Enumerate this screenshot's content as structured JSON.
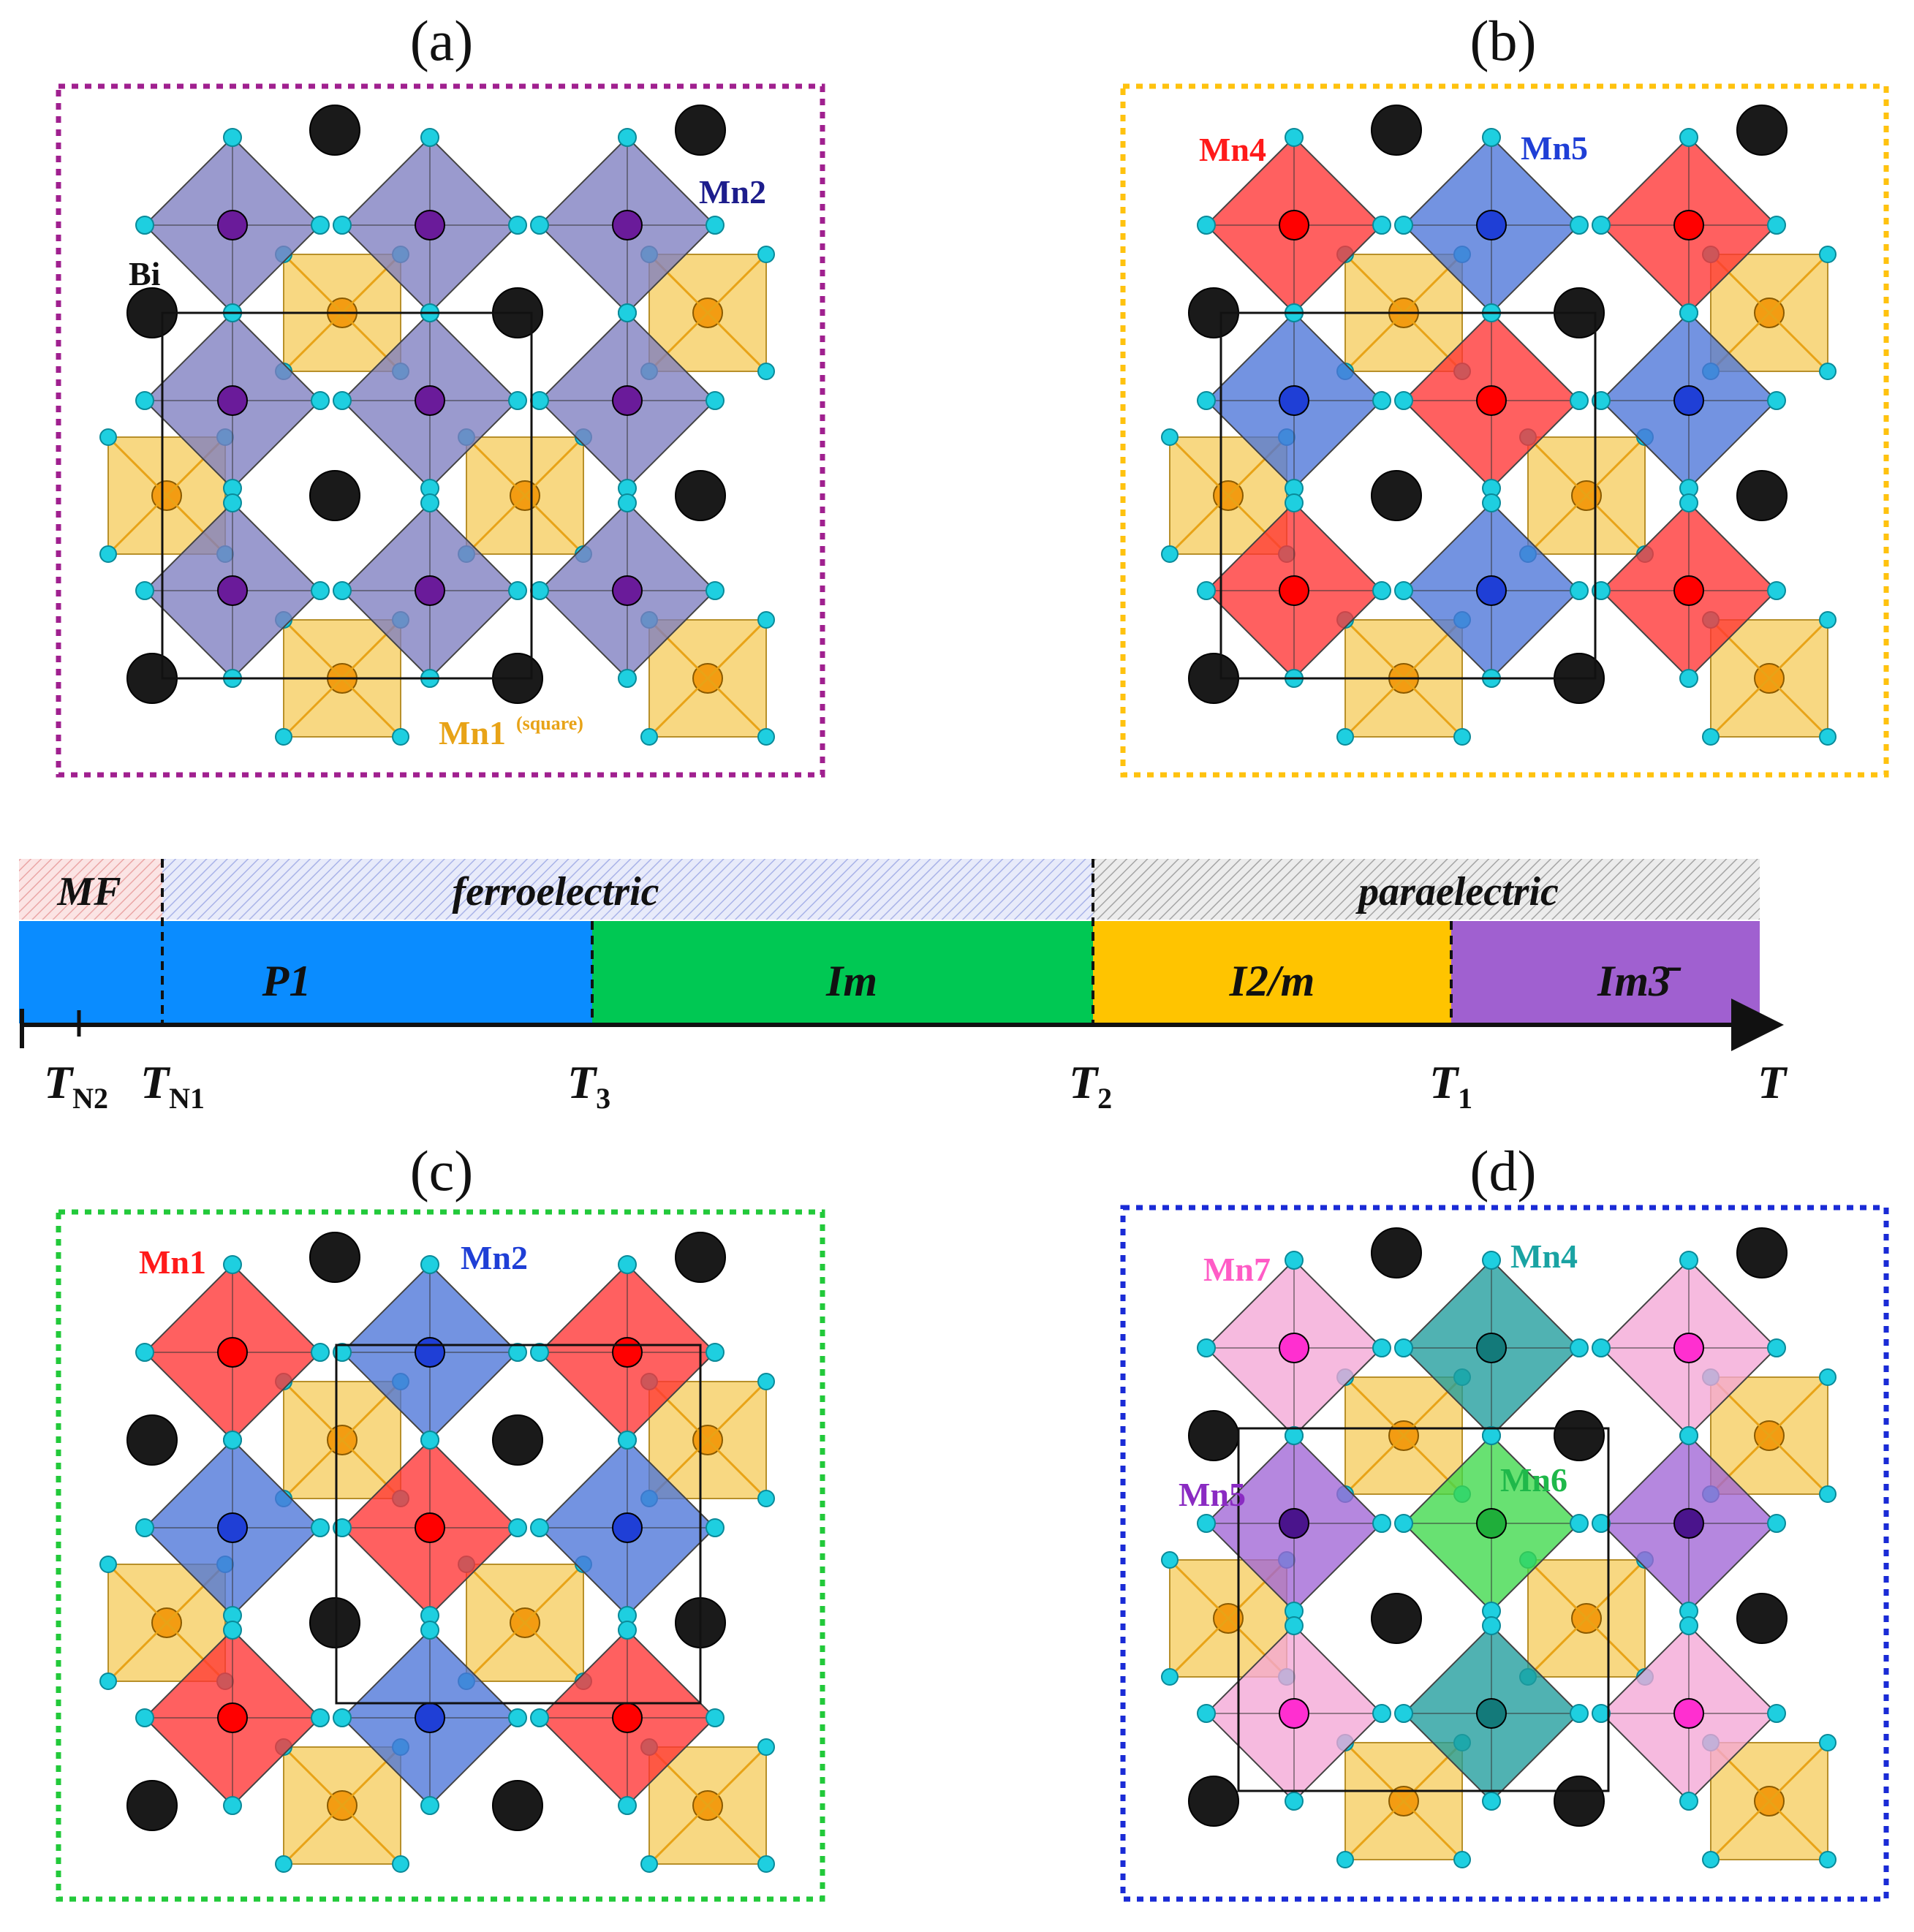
{
  "panels": [
    {
      "label": "(a)",
      "atoms": [
        {
          "text": "Bi",
          "color": "#111111"
        },
        {
          "text": "Mn2",
          "color": "#1d1d8c"
        },
        {
          "text": "Mn1",
          "sup": "(square)",
          "color": "#e8a317"
        }
      ]
    },
    {
      "label": "(b)",
      "atoms": [
        {
          "text": "Mn4",
          "color": "#ff1a1a"
        },
        {
          "text": "Mn5",
          "color": "#1f3fd6"
        }
      ]
    },
    {
      "label": "(c)",
      "atoms": [
        {
          "text": "Mn1",
          "color": "#ff1a1a"
        },
        {
          "text": "Mn2",
          "color": "#1f3fd6"
        }
      ]
    },
    {
      "label": "(d)",
      "atoms": [
        {
          "text": "Mn7",
          "color": "#ff5cc6"
        },
        {
          "text": "Mn4",
          "color": "#1aa3a3"
        },
        {
          "text": "Mn5",
          "color": "#8a2bc2"
        },
        {
          "text": "Mn6",
          "color": "#1fb84a"
        }
      ]
    }
  ],
  "frame_colors": {
    "a": "#a0208f",
    "b": "#ffc20e",
    "c": "#22c93a",
    "d": "#1a2bd6"
  },
  "polyhedra_colors": {
    "square": "#f5c84d",
    "purple": "#7e7ec0",
    "red": "#ff3333",
    "blue": "#4c74d8",
    "pink": "#f4a6d6",
    "teal": "#1f9c9c",
    "green": "#3dd94a",
    "violet": "#a065d6"
  },
  "phase_diagram": {
    "bands": [
      {
        "label": "MF",
        "color": "#f6d2d2"
      },
      {
        "label": "ferroelectric",
        "color": "#d6dcf4"
      },
      {
        "label": "paraelectric",
        "color": "#d6d6d6"
      }
    ],
    "phases": [
      {
        "label": "P1",
        "color": "#0a8cff"
      },
      {
        "label": "Im",
        "color": "#00c853"
      },
      {
        "label": "I2/m",
        "color": "#ffc400"
      },
      {
        "label": "Im3̄",
        "color": "#a060d0"
      }
    ],
    "ticks": [
      {
        "main": "T",
        "sub": "N2"
      },
      {
        "main": "T",
        "sub": "N1"
      },
      {
        "main": "T",
        "sub": "3"
      },
      {
        "main": "T",
        "sub": "2"
      },
      {
        "main": "T",
        "sub": "1"
      },
      {
        "main": "T",
        "sub": ""
      }
    ]
  }
}
